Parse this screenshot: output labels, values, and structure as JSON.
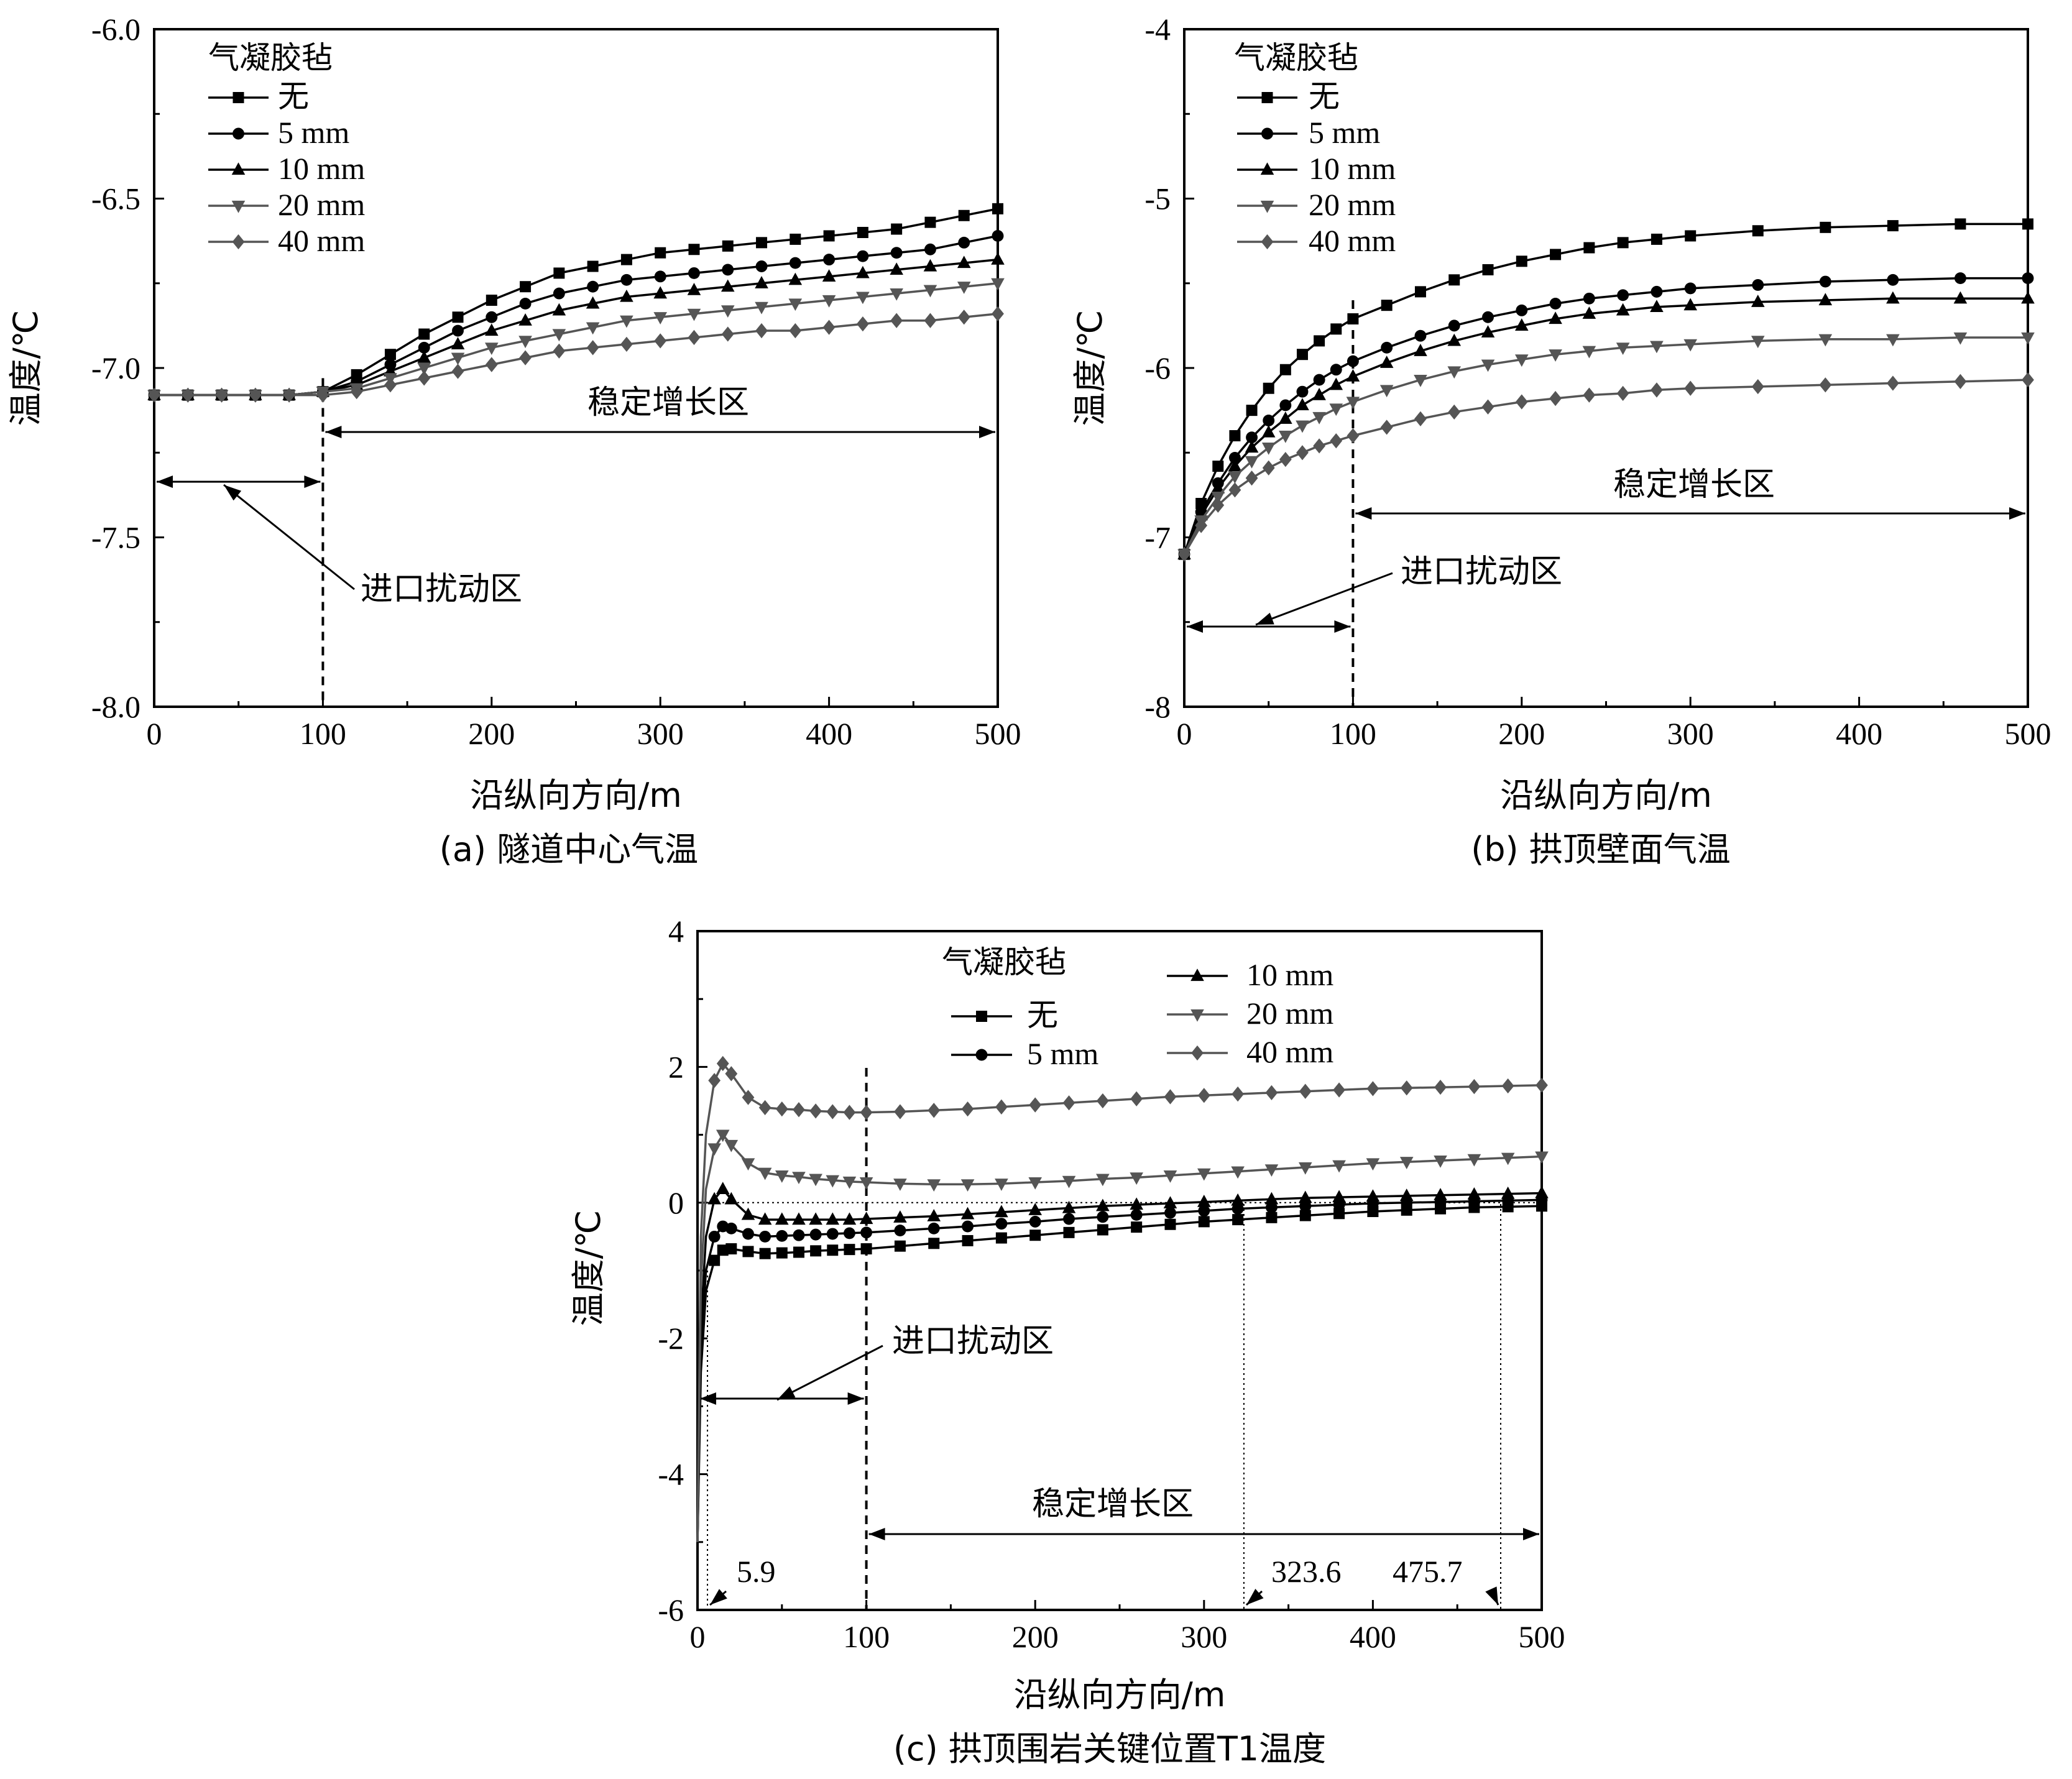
{
  "legend_title": "气凝胶毡",
  "series_names": [
    "无",
    "5 mm",
    "10 mm",
    "20 mm",
    "40 mm"
  ],
  "series_colors": [
    "#000000",
    "#000000",
    "#000000",
    "#555555",
    "#555555"
  ],
  "series_markers": [
    "square",
    "circle",
    "triangle-up",
    "triangle-down",
    "diamond"
  ],
  "xlabel": "沿纵向方向/m",
  "ylabel": "温度/℃",
  "zone_inlet": "进口扰动区",
  "zone_stable": "稳定增长区",
  "chart_data": [
    {
      "type": "line",
      "caption": "(a) 隧道中心气温",
      "xlabel": "沿纵向方向/m",
      "ylabel": "温度/℃",
      "xlim": [
        0,
        500
      ],
      "ylim": [
        -8.0,
        -6.0
      ],
      "xticks": [
        "0",
        "100",
        "200",
        "300",
        "400",
        "500"
      ],
      "yticks": [
        "-8.0",
        "-7.5",
        "-7.0",
        "-6.5",
        "-6.0"
      ],
      "legend_title": "气凝胶毡",
      "legend_placement": "top-left",
      "grid": false,
      "annotations": [
        "进口扰动区",
        "稳定增长区"
      ],
      "divider_x": 100,
      "series": [
        {
          "name": "无",
          "x": [
            0,
            20,
            40,
            60,
            80,
            100,
            120,
            140,
            160,
            180,
            200,
            220,
            240,
            260,
            280,
            300,
            320,
            340,
            360,
            380,
            400,
            420,
            440,
            460,
            480,
            500
          ],
          "y": [
            -7.08,
            -7.08,
            -7.08,
            -7.08,
            -7.08,
            -7.07,
            -7.02,
            -6.96,
            -6.9,
            -6.85,
            -6.8,
            -6.76,
            -6.72,
            -6.7,
            -6.68,
            -6.66,
            -6.65,
            -6.64,
            -6.63,
            -6.62,
            -6.61,
            -6.6,
            -6.59,
            -6.57,
            -6.55,
            -6.53
          ]
        },
        {
          "name": "5 mm",
          "x": [
            0,
            20,
            40,
            60,
            80,
            100,
            120,
            140,
            160,
            180,
            200,
            220,
            240,
            260,
            280,
            300,
            320,
            340,
            360,
            380,
            400,
            420,
            440,
            460,
            480,
            500
          ],
          "y": [
            -7.08,
            -7.08,
            -7.08,
            -7.08,
            -7.08,
            -7.07,
            -7.04,
            -6.99,
            -6.94,
            -6.89,
            -6.85,
            -6.81,
            -6.78,
            -6.76,
            -6.74,
            -6.73,
            -6.72,
            -6.71,
            -6.7,
            -6.69,
            -6.68,
            -6.67,
            -6.66,
            -6.65,
            -6.63,
            -6.61
          ]
        },
        {
          "name": "10 mm",
          "x": [
            0,
            20,
            40,
            60,
            80,
            100,
            120,
            140,
            160,
            180,
            200,
            220,
            240,
            260,
            280,
            300,
            320,
            340,
            360,
            380,
            400,
            420,
            440,
            460,
            480,
            500
          ],
          "y": [
            -7.08,
            -7.08,
            -7.08,
            -7.08,
            -7.08,
            -7.07,
            -7.05,
            -7.01,
            -6.97,
            -6.93,
            -6.89,
            -6.86,
            -6.83,
            -6.81,
            -6.79,
            -6.78,
            -6.77,
            -6.76,
            -6.75,
            -6.74,
            -6.73,
            -6.72,
            -6.71,
            -6.7,
            -6.69,
            -6.68
          ]
        },
        {
          "name": "20 mm",
          "x": [
            0,
            20,
            40,
            60,
            80,
            100,
            120,
            140,
            160,
            180,
            200,
            220,
            240,
            260,
            280,
            300,
            320,
            340,
            360,
            380,
            400,
            420,
            440,
            460,
            480,
            500
          ],
          "y": [
            -7.08,
            -7.08,
            -7.08,
            -7.08,
            -7.08,
            -7.07,
            -7.06,
            -7.03,
            -7.0,
            -6.97,
            -6.94,
            -6.92,
            -6.9,
            -6.88,
            -6.86,
            -6.85,
            -6.84,
            -6.83,
            -6.82,
            -6.81,
            -6.8,
            -6.79,
            -6.78,
            -6.77,
            -6.76,
            -6.75
          ]
        },
        {
          "name": "40 mm",
          "x": [
            0,
            20,
            40,
            60,
            80,
            100,
            120,
            140,
            160,
            180,
            200,
            220,
            240,
            260,
            280,
            300,
            320,
            340,
            360,
            380,
            400,
            420,
            440,
            460,
            480,
            500
          ],
          "y": [
            -7.08,
            -7.08,
            -7.08,
            -7.08,
            -7.08,
            -7.08,
            -7.07,
            -7.05,
            -7.03,
            -7.01,
            -6.99,
            -6.97,
            -6.95,
            -6.94,
            -6.93,
            -6.92,
            -6.91,
            -6.9,
            -6.89,
            -6.89,
            -6.88,
            -6.87,
            -6.86,
            -6.86,
            -6.85,
            -6.84
          ]
        }
      ]
    },
    {
      "type": "line",
      "caption": "(b) 拱顶壁面气温",
      "xlabel": "沿纵向方向/m",
      "ylabel": "温度/℃",
      "xlim": [
        0,
        500
      ],
      "ylim": [
        -8,
        -4
      ],
      "xticks": [
        "0",
        "100",
        "200",
        "300",
        "400",
        "500"
      ],
      "yticks": [
        "-8",
        "-7",
        "-6",
        "-5",
        "-4"
      ],
      "legend_title": "气凝胶毡",
      "legend_placement": "top-left",
      "grid": false,
      "annotations": [
        "进口扰动区",
        "稳定增长区"
      ],
      "divider_x": 100,
      "series": [
        {
          "name": "无",
          "x": [
            0,
            10,
            20,
            30,
            40,
            50,
            60,
            70,
            80,
            90,
            100,
            120,
            140,
            160,
            180,
            200,
            220,
            240,
            260,
            280,
            300,
            340,
            380,
            420,
            460,
            500
          ],
          "y": [
            -7.1,
            -6.8,
            -6.58,
            -6.4,
            -6.25,
            -6.12,
            -6.01,
            -5.92,
            -5.84,
            -5.77,
            -5.71,
            -5.63,
            -5.55,
            -5.48,
            -5.42,
            -5.37,
            -5.33,
            -5.29,
            -5.26,
            -5.24,
            -5.22,
            -5.19,
            -5.17,
            -5.16,
            -5.15,
            -5.15
          ]
        },
        {
          "name": "5 mm",
          "x": [
            0,
            10,
            20,
            30,
            40,
            50,
            60,
            70,
            80,
            90,
            100,
            120,
            140,
            160,
            180,
            200,
            220,
            240,
            260,
            280,
            300,
            340,
            380,
            420,
            460,
            500
          ],
          "y": [
            -7.1,
            -6.85,
            -6.68,
            -6.53,
            -6.41,
            -6.31,
            -6.22,
            -6.14,
            -6.07,
            -6.01,
            -5.96,
            -5.88,
            -5.81,
            -5.75,
            -5.7,
            -5.66,
            -5.62,
            -5.59,
            -5.57,
            -5.55,
            -5.53,
            -5.51,
            -5.49,
            -5.48,
            -5.47,
            -5.47
          ]
        },
        {
          "name": "10 mm",
          "x": [
            0,
            10,
            20,
            30,
            40,
            50,
            60,
            70,
            80,
            90,
            100,
            120,
            140,
            160,
            180,
            200,
            220,
            240,
            260,
            280,
            300,
            340,
            380,
            420,
            460,
            500
          ],
          "y": [
            -7.1,
            -6.87,
            -6.71,
            -6.58,
            -6.47,
            -6.38,
            -6.3,
            -6.22,
            -6.16,
            -6.1,
            -6.05,
            -5.97,
            -5.9,
            -5.84,
            -5.79,
            -5.75,
            -5.71,
            -5.68,
            -5.66,
            -5.64,
            -5.63,
            -5.61,
            -5.6,
            -5.59,
            -5.59,
            -5.59
          ]
        },
        {
          "name": "20 mm",
          "x": [
            0,
            10,
            20,
            30,
            40,
            50,
            60,
            70,
            80,
            90,
            100,
            120,
            140,
            160,
            180,
            200,
            220,
            240,
            260,
            280,
            300,
            340,
            380,
            420,
            460,
            500
          ],
          "y": [
            -7.1,
            -6.9,
            -6.76,
            -6.64,
            -6.55,
            -6.47,
            -6.4,
            -6.34,
            -6.29,
            -6.24,
            -6.2,
            -6.13,
            -6.07,
            -6.02,
            -5.98,
            -5.95,
            -5.92,
            -5.9,
            -5.88,
            -5.87,
            -5.86,
            -5.84,
            -5.83,
            -5.83,
            -5.82,
            -5.82
          ]
        },
        {
          "name": "40 mm",
          "x": [
            0,
            10,
            20,
            30,
            40,
            50,
            60,
            70,
            80,
            90,
            100,
            120,
            140,
            160,
            180,
            200,
            220,
            240,
            260,
            280,
            300,
            340,
            380,
            420,
            460,
            500
          ],
          "y": [
            -7.1,
            -6.93,
            -6.81,
            -6.72,
            -6.65,
            -6.59,
            -6.54,
            -6.5,
            -6.46,
            -6.43,
            -6.4,
            -6.35,
            -6.3,
            -6.26,
            -6.23,
            -6.2,
            -6.18,
            -6.16,
            -6.15,
            -6.13,
            -6.12,
            -6.11,
            -6.1,
            -6.09,
            -6.08,
            -6.07
          ]
        }
      ]
    },
    {
      "type": "line",
      "caption": "(c) 拱顶围岩关键位置T1温度",
      "xlabel": "沿纵向方向/m",
      "ylabel": "温度/℃",
      "xlim": [
        0,
        500
      ],
      "ylim": [
        -6,
        4
      ],
      "xticks": [
        "0",
        "100",
        "200",
        "300",
        "400",
        "500"
      ],
      "yticks": [
        "-6",
        "-4",
        "-2",
        "0",
        "2",
        "4"
      ],
      "legend_title": "气凝胶毡",
      "legend_placement": "top",
      "grid": false,
      "annotations": [
        "进口扰动区",
        "稳定增长区",
        "5.9",
        "323.6",
        "475.7"
      ],
      "divider_x": 100,
      "marked_x": [
        5.9,
        323.6,
        475.7
      ],
      "series": [
        {
          "name": "无",
          "x": [
            0,
            2,
            5,
            10,
            15,
            20,
            30,
            40,
            50,
            60,
            70,
            80,
            90,
            100,
            120,
            140,
            160,
            180,
            200,
            220,
            240,
            260,
            280,
            300,
            320,
            340,
            360,
            380,
            400,
            420,
            440,
            460,
            480,
            500
          ],
          "y": [
            -5.0,
            -2.5,
            -1.3,
            -0.85,
            -0.7,
            -0.68,
            -0.72,
            -0.75,
            -0.74,
            -0.73,
            -0.71,
            -0.7,
            -0.69,
            -0.68,
            -0.64,
            -0.6,
            -0.56,
            -0.52,
            -0.48,
            -0.44,
            -0.4,
            -0.36,
            -0.32,
            -0.28,
            -0.25,
            -0.22,
            -0.19,
            -0.16,
            -0.13,
            -0.11,
            -0.09,
            -0.07,
            -0.06,
            -0.05
          ]
        },
        {
          "name": "5 mm",
          "x": [
            0,
            2,
            5,
            10,
            15,
            20,
            30,
            40,
            50,
            60,
            70,
            80,
            90,
            100,
            120,
            140,
            160,
            180,
            200,
            220,
            240,
            260,
            280,
            300,
            320,
            340,
            360,
            380,
            400,
            420,
            440,
            460,
            480,
            500
          ],
          "y": [
            -5.0,
            -2.2,
            -1.0,
            -0.5,
            -0.35,
            -0.38,
            -0.46,
            -0.5,
            -0.49,
            -0.48,
            -0.47,
            -0.46,
            -0.45,
            -0.44,
            -0.41,
            -0.38,
            -0.35,
            -0.31,
            -0.28,
            -0.24,
            -0.21,
            -0.18,
            -0.15,
            -0.12,
            -0.09,
            -0.07,
            -0.05,
            -0.03,
            -0.01,
            0.0,
            0.01,
            0.02,
            0.03,
            0.04
          ]
        },
        {
          "name": "10 mm",
          "x": [
            0,
            2,
            5,
            10,
            15,
            20,
            30,
            40,
            50,
            60,
            70,
            80,
            90,
            100,
            120,
            140,
            160,
            180,
            200,
            220,
            240,
            260,
            280,
            300,
            320,
            340,
            360,
            380,
            400,
            420,
            440,
            460,
            480,
            500
          ],
          "y": [
            -5.0,
            -1.8,
            -0.5,
            0.05,
            0.2,
            0.05,
            -0.18,
            -0.25,
            -0.25,
            -0.25,
            -0.25,
            -0.25,
            -0.25,
            -0.24,
            -0.22,
            -0.2,
            -0.17,
            -0.14,
            -0.11,
            -0.08,
            -0.05,
            -0.03,
            -0.01,
            0.01,
            0.03,
            0.05,
            0.07,
            0.08,
            0.09,
            0.1,
            0.11,
            0.12,
            0.13,
            0.14
          ]
        },
        {
          "name": "20 mm",
          "x": [
            0,
            2,
            5,
            10,
            15,
            20,
            30,
            40,
            50,
            60,
            70,
            80,
            90,
            100,
            120,
            140,
            160,
            180,
            200,
            220,
            240,
            260,
            280,
            300,
            320,
            340,
            360,
            380,
            400,
            420,
            440,
            460,
            480,
            500
          ],
          "y": [
            -5.0,
            -1.2,
            0.2,
            0.8,
            1.0,
            0.85,
            0.58,
            0.44,
            0.4,
            0.38,
            0.35,
            0.33,
            0.31,
            0.3,
            0.28,
            0.27,
            0.27,
            0.28,
            0.3,
            0.32,
            0.35,
            0.37,
            0.4,
            0.43,
            0.46,
            0.49,
            0.52,
            0.55,
            0.58,
            0.6,
            0.62,
            0.64,
            0.66,
            0.68
          ]
        },
        {
          "name": "40 mm",
          "x": [
            0,
            2,
            5,
            10,
            15,
            20,
            30,
            40,
            50,
            60,
            70,
            80,
            90,
            100,
            120,
            140,
            160,
            180,
            200,
            220,
            240,
            260,
            280,
            300,
            320,
            340,
            360,
            380,
            400,
            420,
            440,
            460,
            480,
            500
          ],
          "y": [
            -5.0,
            -0.5,
            1.0,
            1.8,
            2.05,
            1.9,
            1.55,
            1.4,
            1.38,
            1.37,
            1.35,
            1.34,
            1.33,
            1.33,
            1.34,
            1.36,
            1.38,
            1.41,
            1.44,
            1.47,
            1.5,
            1.53,
            1.56,
            1.58,
            1.6,
            1.62,
            1.64,
            1.66,
            1.68,
            1.69,
            1.7,
            1.71,
            1.72,
            1.73
          ]
        }
      ]
    }
  ]
}
